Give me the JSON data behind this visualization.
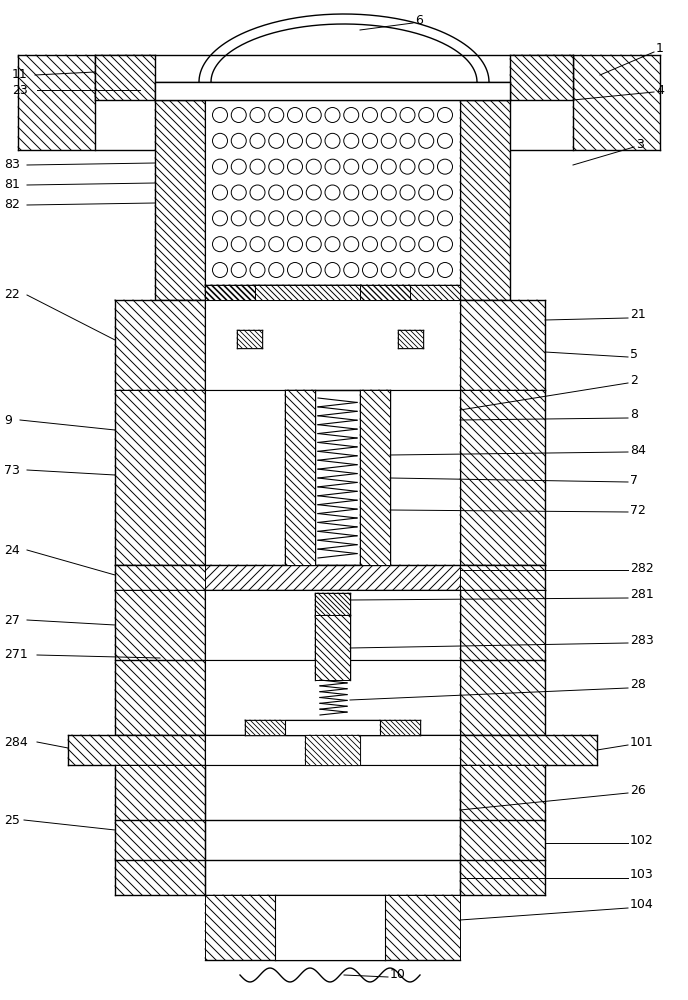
{
  "bg_color": "#ffffff",
  "line_color": "#000000",
  "lw": 1.0,
  "hatch_step": 8
}
